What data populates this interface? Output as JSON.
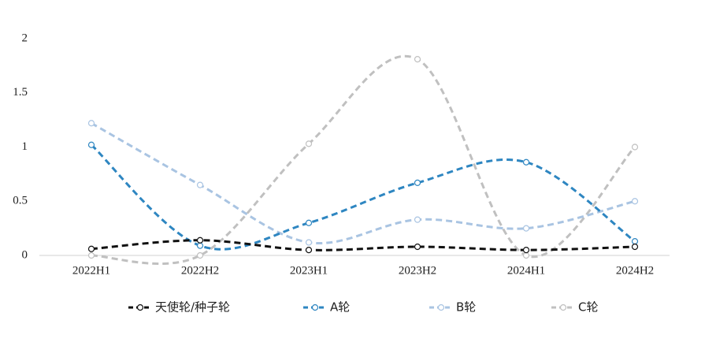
{
  "chart_data": {
    "type": "line",
    "categories": [
      "2022H1",
      "2022H2",
      "2023H1",
      "2023H2",
      "2024H1",
      "2024H2"
    ],
    "series": [
      {
        "name": "天使轮/种子轮",
        "color": "#111111",
        "values": [
          0.06,
          0.14,
          0.05,
          0.08,
          0.05,
          0.08
        ]
      },
      {
        "name": "A轮",
        "color": "#2e86c1",
        "values": [
          1.02,
          0.09,
          0.3,
          0.67,
          0.86,
          0.13
        ]
      },
      {
        "name": "B轮",
        "color": "#a9c4e2",
        "values": [
          1.22,
          0.65,
          0.12,
          0.33,
          0.25,
          0.5
        ]
      },
      {
        "name": "C轮",
        "color": "#c0c0c0",
        "values": [
          0,
          0,
          1.03,
          1.81,
          0,
          1.0
        ]
      }
    ],
    "ylim": [
      0,
      2
    ],
    "yticks": [
      0,
      0.5,
      1,
      1.5,
      2
    ],
    "smooth": true,
    "legend": "bottom"
  }
}
